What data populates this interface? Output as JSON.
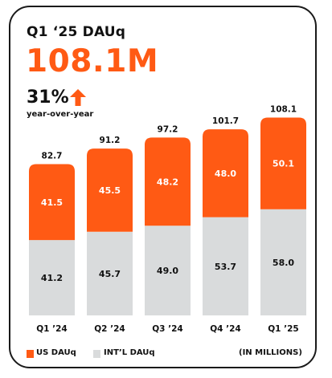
{
  "header": {
    "title": "Q1 ‘25 DAUq",
    "headline": "108.1M",
    "growth_value": "31%",
    "growth_label": "year-over-year",
    "growth_icon": "up-arrow-icon"
  },
  "colors": {
    "accent": "#ff5a14",
    "secondary": "#d9dbdc",
    "text": "#111111",
    "border": "#1a1a1a"
  },
  "legend": {
    "us_label": "US DAUq",
    "intl_label": "INT’L DAUq",
    "units_label": "(IN MILLIONS)"
  },
  "chart_data": {
    "type": "bar",
    "stacked": true,
    "categories": [
      "Q1 ’24",
      "Q2 ’24",
      "Q3 ’24",
      "Q4 ’24",
      "Q1 ’25"
    ],
    "totals": [
      "82.7",
      "91.2",
      "97.2",
      "101.7",
      "108.1"
    ],
    "series": [
      {
        "name": "INT’L DAUq",
        "values": [
          41.2,
          45.7,
          49.0,
          53.7,
          58.0
        ],
        "labels": [
          "41.2",
          "45.7",
          "49.0",
          "53.7",
          "58.0"
        ],
        "color": "#d9dbdc"
      },
      {
        "name": "US DAUq",
        "values": [
          41.5,
          45.5,
          48.2,
          48.0,
          50.1
        ],
        "labels": [
          "41.5",
          "45.5",
          "48.2",
          "48.0",
          "50.1"
        ],
        "color": "#ff5a14"
      }
    ],
    "unit": "(IN MILLIONS)",
    "legend_position": "bottom",
    "grid": false
  }
}
